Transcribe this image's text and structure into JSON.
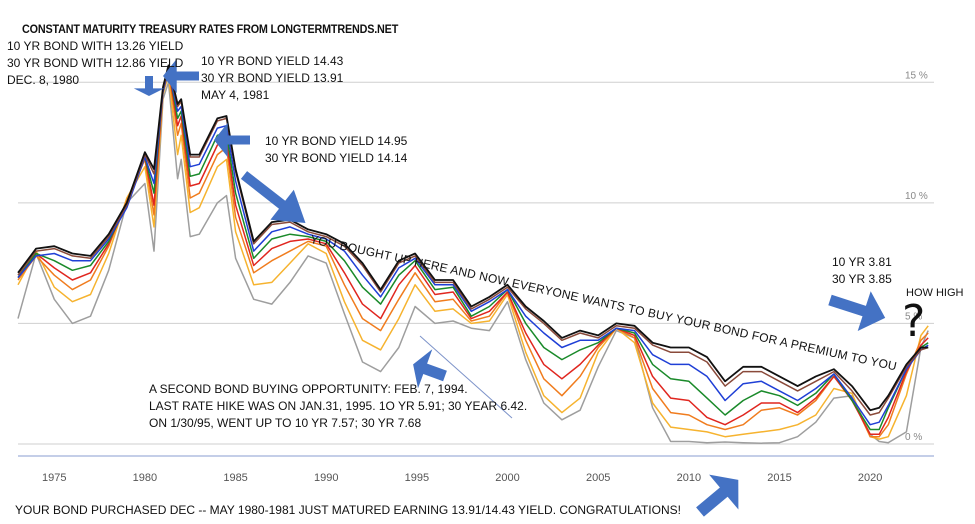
{
  "title": "CONSTANT MATURITY TREASURY RATES FROM LONGTERMTRENDS.NET",
  "annotations": {
    "dec1980": [
      "10 YR BOND WITH 13.26 YIELD",
      "30 YR BOND WITH 12.86 YIELD",
      "DEC. 8, 1980"
    ],
    "may1981": [
      "10 YR BOND YIELD 14.43",
      "30 YR BOND YIELD 13.91",
      "MAY 4, 1981"
    ],
    "peak1984": [
      "10 YR BOND YIELD 14.95",
      "30 YR BOND YIELD 14.14"
    ],
    "slanted": "YOU BOUGHT UP HERE AND NOW EVERYONE WANTS TO BUY YOUR BOND FOR A PREMIUM TO YOU",
    "second_opportunity": [
      "A SECOND BOND BUYING OPPORTUNITY: FEB. 7, 1994.",
      "LAST RATE HIKE WAS ON JAN.31, 1995. 1O YR 5.91; 30 YEAR 6.42.",
      "ON 1/30/95, WENT UP TO 10 YR 7.57; 30 YR 7.68"
    ],
    "current": [
      "10 YR 3.81",
      "30 YR 3.85"
    ],
    "how_high": "HOW HIGH",
    "question_mark": "?",
    "footer": "YOUR BOND PURCHASED DEC -- MAY  1980-1981 JUST MATURED EARNING 13.91/14.43 YIELD. CONGRATULATIONS!"
  },
  "colors": {
    "arrow": "#4472c4",
    "grid": "#cfcfcf",
    "axis": "#b0bde0",
    "series": [
      "#9e9e9e",
      "#f6b32f",
      "#f07c1e",
      "#e0261f",
      "#1a8a2a",
      "#1f3fd6",
      "#8a4a3a",
      "#111111"
    ]
  },
  "chart_data": {
    "type": "line",
    "title": "CONSTANT MATURITY TREASURY RATES FROM LONGTERMTRENDS.NET",
    "xlabel": "",
    "ylabel": "",
    "xlim": [
      1973,
      2023.3
    ],
    "ylim": [
      -0.5,
      17.5
    ],
    "x_ticks": [
      "1975",
      "1980",
      "1985",
      "1990",
      "1995",
      "2000",
      "2005",
      "2010",
      "2015",
      "2020"
    ],
    "x_tick_values": [
      1975,
      1980,
      1985,
      1990,
      1995,
      2000,
      2005,
      2010,
      2015,
      2020
    ],
    "y_ticks": [
      "0 %",
      "5 %",
      "10 %",
      "15 %"
    ],
    "y_tick_values": [
      0,
      5,
      10,
      15
    ],
    "grid": true,
    "legend": "none",
    "x": [
      1973,
      1974,
      1975,
      1976,
      1977,
      1978,
      1979,
      1980,
      1980.5,
      1981,
      1981.3,
      1981.8,
      1982,
      1982.5,
      1983,
      1984,
      1984.5,
      1985,
      1986,
      1987,
      1988,
      1989,
      1990,
      1991,
      1992,
      1993,
      1994,
      1994.9,
      1996,
      1997,
      1998,
      1999,
      2000,
      2001,
      2002,
      2003,
      2004,
      2005,
      2006,
      2007,
      2008,
      2009,
      2010,
      2011,
      2012,
      2013,
      2014,
      2015,
      2016,
      2017,
      2018,
      2019,
      2020,
      2020.5,
      2021,
      2022,
      2022.8,
      2023.2
    ],
    "series": [
      {
        "values": [
          5.2,
          7.9,
          6.0,
          5.0,
          5.3,
          7.2,
          10.0,
          10.8,
          8.0,
          14.3,
          15.0,
          11.0,
          11.8,
          8.6,
          8.7,
          10.0,
          10.3,
          7.7,
          6.0,
          5.8,
          6.7,
          7.8,
          7.5,
          5.4,
          3.4,
          3.0,
          4.0,
          5.7,
          5.0,
          5.1,
          4.8,
          4.7,
          5.9,
          3.5,
          1.7,
          1.0,
          1.4,
          3.2,
          4.7,
          4.4,
          1.5,
          0.1,
          0.1,
          0.05,
          0.08,
          0.05,
          0.03,
          0.05,
          0.3,
          0.9,
          1.9,
          2.0,
          0.4,
          0.1,
          0.05,
          0.5,
          4.0,
          4.7
        ]
      },
      {
        "values": [
          6.6,
          8.0,
          6.5,
          5.9,
          6.2,
          7.9,
          10.2,
          11.5,
          9.0,
          14.5,
          15.3,
          12.0,
          12.8,
          9.6,
          9.8,
          11.5,
          11.8,
          8.8,
          6.6,
          6.7,
          7.5,
          8.3,
          7.9,
          5.9,
          4.3,
          3.9,
          5.2,
          6.6,
          5.5,
          5.6,
          5.0,
          5.1,
          6.2,
          3.8,
          2.0,
          1.3,
          1.9,
          3.8,
          4.8,
          4.2,
          1.7,
          0.7,
          0.6,
          0.5,
          0.3,
          0.4,
          0.5,
          0.6,
          0.8,
          1.2,
          2.3,
          2.1,
          0.3,
          0.2,
          0.3,
          2.0,
          4.5,
          4.9
        ]
      },
      {
        "values": [
          6.8,
          7.8,
          7.0,
          6.4,
          6.8,
          8.2,
          10.1,
          11.8,
          9.5,
          14.6,
          15.5,
          12.8,
          13.3,
          10.2,
          10.4,
          12.0,
          12.3,
          9.4,
          7.1,
          7.6,
          8.0,
          8.4,
          8.2,
          6.6,
          5.2,
          4.7,
          6.0,
          7.1,
          5.9,
          6.0,
          5.1,
          5.3,
          6.3,
          4.3,
          2.7,
          2.0,
          2.8,
          4.0,
          4.8,
          4.4,
          2.3,
          1.3,
          1.2,
          0.8,
          0.6,
          0.8,
          1.4,
          1.5,
          1.2,
          1.8,
          2.8,
          1.9,
          0.3,
          0.3,
          0.8,
          2.9,
          4.3,
          4.6
        ]
      },
      {
        "values": [
          6.9,
          7.9,
          7.3,
          6.8,
          7.1,
          8.3,
          10.0,
          11.9,
          9.9,
          14.7,
          15.6,
          13.2,
          13.6,
          10.7,
          10.8,
          12.4,
          12.6,
          9.9,
          7.4,
          8.1,
          8.4,
          8.5,
          8.3,
          7.1,
          5.8,
          5.2,
          6.6,
          7.4,
          6.2,
          6.3,
          5.2,
          5.5,
          6.3,
          4.6,
          3.3,
          2.7,
          3.3,
          4.1,
          4.8,
          4.5,
          2.8,
          1.9,
          1.8,
          1.1,
          0.8,
          1.2,
          1.7,
          1.7,
          1.3,
          1.9,
          2.8,
          1.8,
          0.4,
          0.4,
          1.1,
          3.0,
          4.1,
          4.4
        ]
      },
      {
        "values": [
          6.9,
          7.9,
          7.6,
          7.2,
          7.4,
          8.4,
          9.9,
          11.9,
          10.4,
          14.7,
          15.6,
          13.5,
          13.8,
          11.1,
          11.2,
          12.8,
          12.9,
          10.4,
          7.7,
          8.5,
          8.7,
          8.6,
          8.4,
          7.6,
          6.5,
          5.8,
          7.0,
          7.6,
          6.4,
          6.5,
          5.3,
          5.7,
          6.4,
          5.0,
          4.0,
          3.5,
          3.9,
          4.2,
          4.8,
          4.6,
          3.3,
          2.7,
          2.6,
          1.9,
          1.2,
          1.8,
          2.2,
          2.0,
          1.6,
          2.1,
          2.9,
          1.8,
          0.6,
          0.6,
          1.5,
          3.1,
          4.0,
          4.2
        ]
      },
      {
        "values": [
          6.9,
          7.8,
          7.9,
          7.6,
          7.6,
          8.5,
          9.8,
          11.9,
          10.8,
          14.6,
          15.5,
          13.8,
          14.0,
          11.5,
          11.6,
          13.1,
          13.2,
          10.9,
          8.0,
          8.8,
          9.0,
          8.7,
          8.5,
          8.0,
          7.0,
          6.1,
          7.3,
          7.7,
          6.6,
          6.6,
          5.5,
          5.9,
          6.4,
          5.3,
          4.6,
          4.0,
          4.3,
          4.3,
          4.8,
          4.7,
          3.7,
          3.3,
          3.3,
          2.8,
          1.8,
          2.5,
          2.6,
          2.2,
          1.8,
          2.3,
          2.9,
          1.9,
          0.8,
          0.9,
          1.6,
          3.1,
          3.9,
          4.1
        ]
      },
      {
        "values": [
          7.0,
          8.0,
          8.1,
          7.8,
          7.7,
          8.6,
          9.9,
          12.0,
          11.2,
          14.7,
          15.6,
          14.0,
          14.2,
          11.9,
          11.9,
          13.4,
          13.5,
          11.3,
          8.3,
          9.1,
          9.2,
          8.8,
          8.6,
          8.2,
          7.4,
          6.3,
          7.5,
          7.8,
          6.7,
          6.7,
          5.6,
          6.0,
          6.5,
          5.6,
          5.0,
          4.3,
          4.6,
          4.4,
          4.9,
          4.8,
          4.1,
          3.8,
          3.8,
          3.4,
          2.4,
          3.0,
          3.0,
          2.6,
          2.2,
          2.6,
          3.0,
          2.2,
          1.2,
          1.3,
          1.9,
          3.2,
          3.9,
          4.0
        ]
      },
      {
        "values": [
          7.1,
          8.1,
          8.2,
          7.9,
          7.8,
          8.7,
          10.0,
          12.1,
          11.4,
          14.8,
          15.7,
          14.1,
          14.3,
          12.0,
          12.0,
          13.5,
          13.6,
          11.4,
          8.4,
          9.2,
          9.3,
          8.9,
          8.7,
          8.3,
          7.5,
          6.4,
          7.6,
          7.9,
          6.8,
          6.8,
          5.7,
          6.1,
          6.6,
          5.7,
          5.1,
          4.4,
          4.7,
          4.5,
          5.0,
          4.9,
          4.2,
          4.0,
          4.0,
          3.6,
          2.6,
          3.2,
          3.2,
          2.8,
          2.4,
          2.8,
          3.1,
          2.4,
          1.4,
          1.5,
          2.0,
          3.3,
          4.0,
          4.0
        ]
      }
    ]
  }
}
